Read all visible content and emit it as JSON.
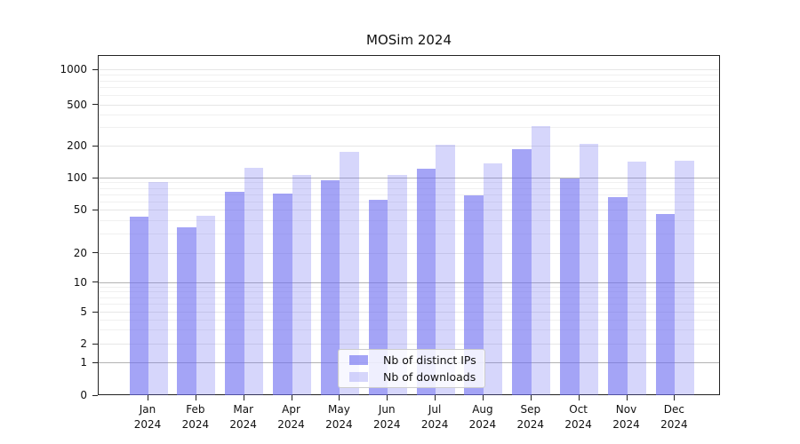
{
  "title": "MOSim 2024",
  "legend": {
    "items": [
      {
        "label": "Nb of distinct IPs",
        "color": "#6c6cf0",
        "alpha": 0.62
      },
      {
        "label": "Nb of downloads",
        "color": "#6c6cf0",
        "alpha": 0.28
      }
    ]
  },
  "chart_data": {
    "type": "bar",
    "title": "MOSim 2024",
    "categories": [
      "Jan",
      "Feb",
      "Mar",
      "Apr",
      "May",
      "Jun",
      "Jul",
      "Aug",
      "Sep",
      "Oct",
      "Nov",
      "Dec"
    ],
    "category_year": "2024",
    "series": [
      {
        "name": "Nb of distinct IPs",
        "values": [
          44,
          35,
          75,
          72,
          97,
          63,
          123,
          69,
          190,
          100,
          67,
          46
        ],
        "color": "#6c6cf0",
        "alpha": 0.62
      },
      {
        "name": "Nb of downloads",
        "values": [
          93,
          45,
          125,
          109,
          178,
          107,
          208,
          140,
          315,
          212,
          144,
          147
        ],
        "color": "#6c6cf0",
        "alpha": 0.28
      }
    ],
    "yscale": "symlog",
    "yticks": [
      0,
      1,
      2,
      5,
      10,
      20,
      50,
      100,
      200,
      500,
      1000
    ],
    "ylim": [
      0,
      1300
    ],
    "xlabel": "",
    "ylabel": "",
    "grid": "both",
    "legend_position": "lower-center"
  }
}
